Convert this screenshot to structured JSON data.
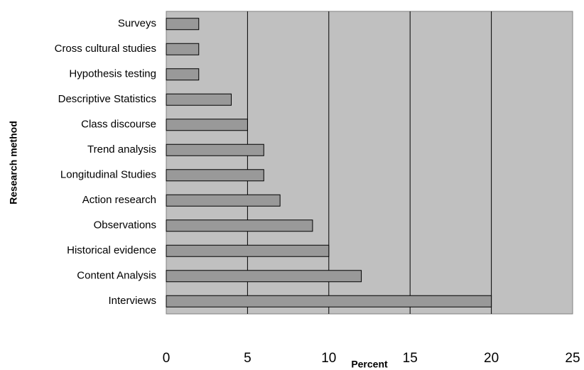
{
  "chart_data": {
    "type": "hbar",
    "categories": [
      "Surveys",
      "Cross cultural studies",
      "Hypothesis testing",
      "Descriptive Statistics",
      "Class discourse",
      "Trend analysis",
      "Longitudinal Studies",
      "Action research",
      "Observations",
      "Historical evidence",
      "Content Analysis",
      "Interviews"
    ],
    "values": [
      2,
      2,
      2,
      4,
      5,
      6,
      6,
      7,
      9,
      10,
      12,
      20
    ],
    "color": "#999999",
    "background": "#c0c0c0",
    "x_label": "Percent",
    "y_label": "Research method",
    "xlim": [
      0,
      25
    ],
    "xticks": [
      0,
      5,
      10,
      15,
      20,
      25
    ],
    "grid": true
  }
}
